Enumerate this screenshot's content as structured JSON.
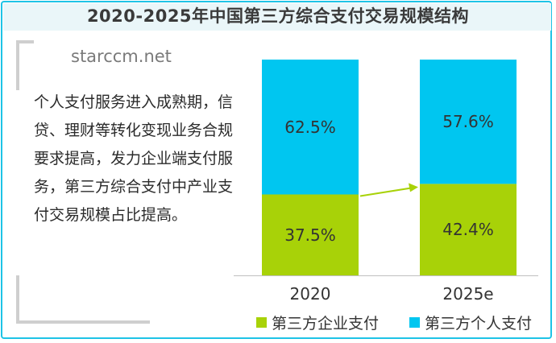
{
  "title": "2020-2025年中国第三方综合支付交易规模结构",
  "watermark": "starccm.net",
  "description": "个人支付服务进入成熟期，信贷、理财等转化变现业务合规要求提高，发力企业端支付服务，第三方综合支付中产业支付交易规模占比提高。",
  "colors": {
    "enterprise": "#a8d208",
    "personal": "#00c6f0",
    "frame": "#1ec3e6"
  },
  "chart_data": {
    "type": "bar",
    "stacked": true,
    "categories": [
      "2020",
      "2025e"
    ],
    "ylim": [
      0,
      100
    ],
    "series": [
      {
        "name": "第三方企业支付",
        "values": [
          37.5,
          42.4
        ],
        "labels": [
          "37.5%",
          "42.4%"
        ]
      },
      {
        "name": "第三方个人支付",
        "values": [
          62.5,
          57.6
        ],
        "labels": [
          "62.5%",
          "57.6%"
        ]
      }
    ],
    "legend_position": "bottom"
  }
}
